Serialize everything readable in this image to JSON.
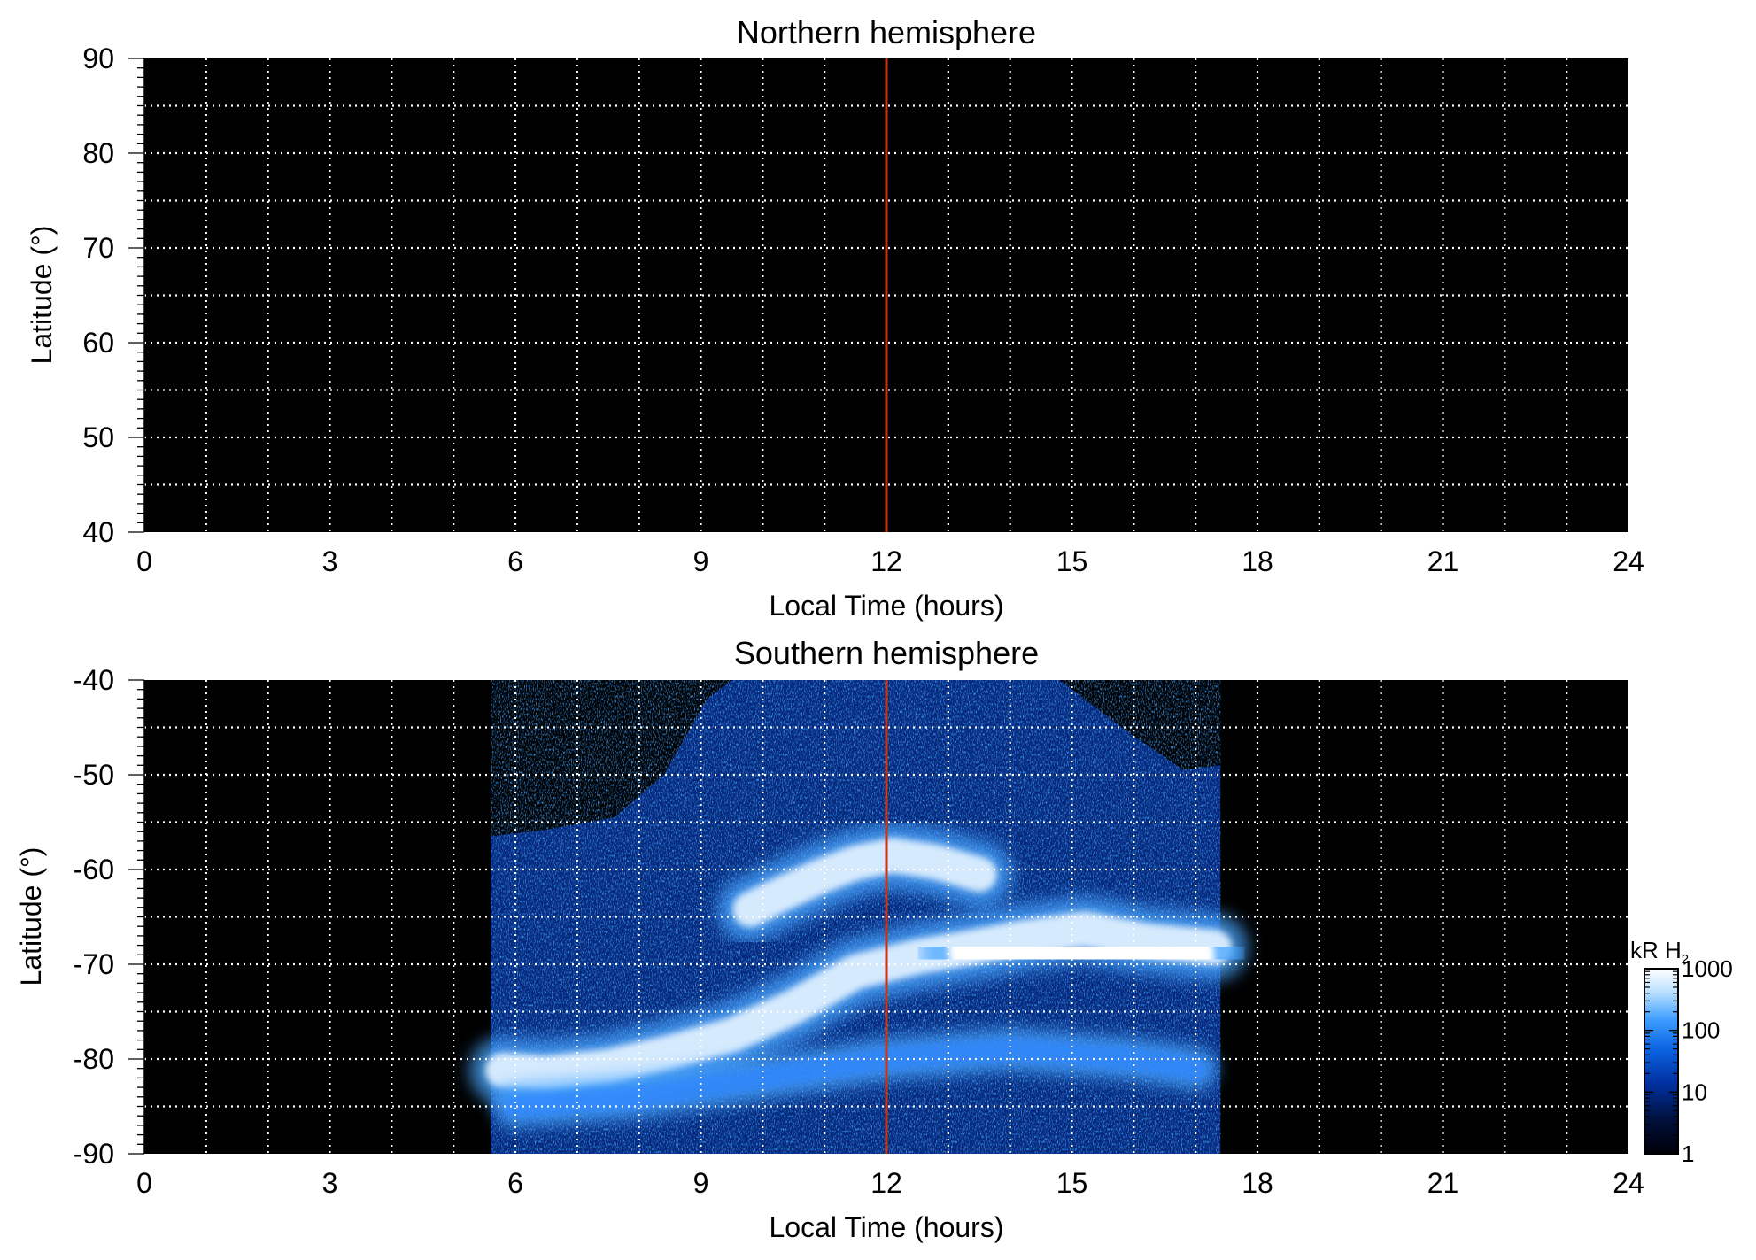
{
  "chart_data": [
    {
      "type": "heatmap",
      "title": "Northern hemisphere",
      "xlabel": "Local Time (hours)",
      "ylabel": "Latitude (°)",
      "xlim": [
        0,
        24
      ],
      "ylim": [
        40,
        90
      ],
      "x_ticks": [
        "0",
        "3",
        "6",
        "9",
        "12",
        "15",
        "18",
        "21",
        "24"
      ],
      "y_ticks": [
        "90",
        "80",
        "70",
        "60",
        "50",
        "40"
      ],
      "grid": true,
      "background": "#000000",
      "reference_line": {
        "x": 12,
        "color": "#cc3311"
      },
      "emission": []
    },
    {
      "type": "heatmap",
      "title": "Southern hemisphere",
      "xlabel": "Local Time (hours)",
      "ylabel": "Latitude (°)",
      "xlim": [
        0,
        24
      ],
      "ylim": [
        -90,
        -40
      ],
      "x_ticks": [
        "0",
        "3",
        "6",
        "9",
        "12",
        "15",
        "18",
        "21",
        "24"
      ],
      "y_ticks": [
        "-40",
        "-50",
        "-60",
        "-70",
        "-80",
        "-90"
      ],
      "grid": true,
      "background": "#000000",
      "reference_line": {
        "x": 12,
        "color": "#cc3311"
      },
      "coverage_region": {
        "boundary": [
          [
            5.6,
            -90
          ],
          [
            5.6,
            -56.5
          ],
          [
            6.5,
            -55.8
          ],
          [
            7.6,
            -54.5
          ],
          [
            8.4,
            -50
          ],
          [
            9.1,
            -42
          ],
          [
            9.5,
            -40
          ],
          [
            14.8,
            -40
          ],
          [
            15.8,
            -45
          ],
          [
            16.8,
            -49.5
          ],
          [
            17.4,
            -49
          ],
          [
            17.4,
            -90
          ]
        ],
        "intensity": "faint"
      },
      "emission": [
        {
          "feature": "main oval",
          "intensity": "bright",
          "path": [
            [
              5.8,
              -81.2
            ],
            [
              6.5,
              -81.5
            ],
            [
              7.5,
              -80.8
            ],
            [
              8.5,
              -79.3
            ],
            [
              9.5,
              -77.5
            ],
            [
              10.5,
              -74.5
            ],
            [
              11.5,
              -70.8
            ],
            [
              12.5,
              -69.2
            ],
            [
              13.3,
              -68.3
            ],
            [
              14.2,
              -67.2
            ],
            [
              15.2,
              -66.3
            ],
            [
              16.2,
              -67.5
            ],
            [
              17.3,
              -68.2
            ]
          ]
        },
        {
          "feature": "afternoon patch",
          "intensity": "brightest",
          "path": [
            [
              13.5,
              -68.5
            ],
            [
              14.3,
              -68.5
            ],
            [
              15.1,
              -68.8
            ],
            [
              16,
              -69.1
            ],
            [
              16.8,
              -69.1
            ]
          ]
        },
        {
          "feature": "high-latitude arc",
          "intensity": "bright",
          "path": [
            [
              9.8,
              -64.2
            ],
            [
              10.3,
              -62.6
            ],
            [
              10.9,
              -60.8
            ],
            [
              11.5,
              -59.3
            ],
            [
              12.1,
              -58.5
            ],
            [
              12.8,
              -59.2
            ],
            [
              13.5,
              -60.5
            ]
          ]
        },
        {
          "feature": "polar cap boundary",
          "intensity": "moderate",
          "path": [
            [
              6,
              -85
            ],
            [
              8,
              -84
            ],
            [
              10,
              -82
            ],
            [
              12,
              -80
            ],
            [
              14,
              -79
            ],
            [
              16,
              -80
            ],
            [
              17,
              -81
            ]
          ]
        }
      ]
    }
  ],
  "colorbar": {
    "label_main": "kR H",
    "label_sub": "2",
    "tick_labels": [
      "1000",
      "100",
      "10",
      "1"
    ],
    "range": [
      1,
      1000
    ],
    "scale": "log",
    "colors": [
      "#000008",
      "#00103a",
      "#0030a0",
      "#0a62e0",
      "#3b9cff",
      "#bfe2ff",
      "#ffffff"
    ]
  }
}
